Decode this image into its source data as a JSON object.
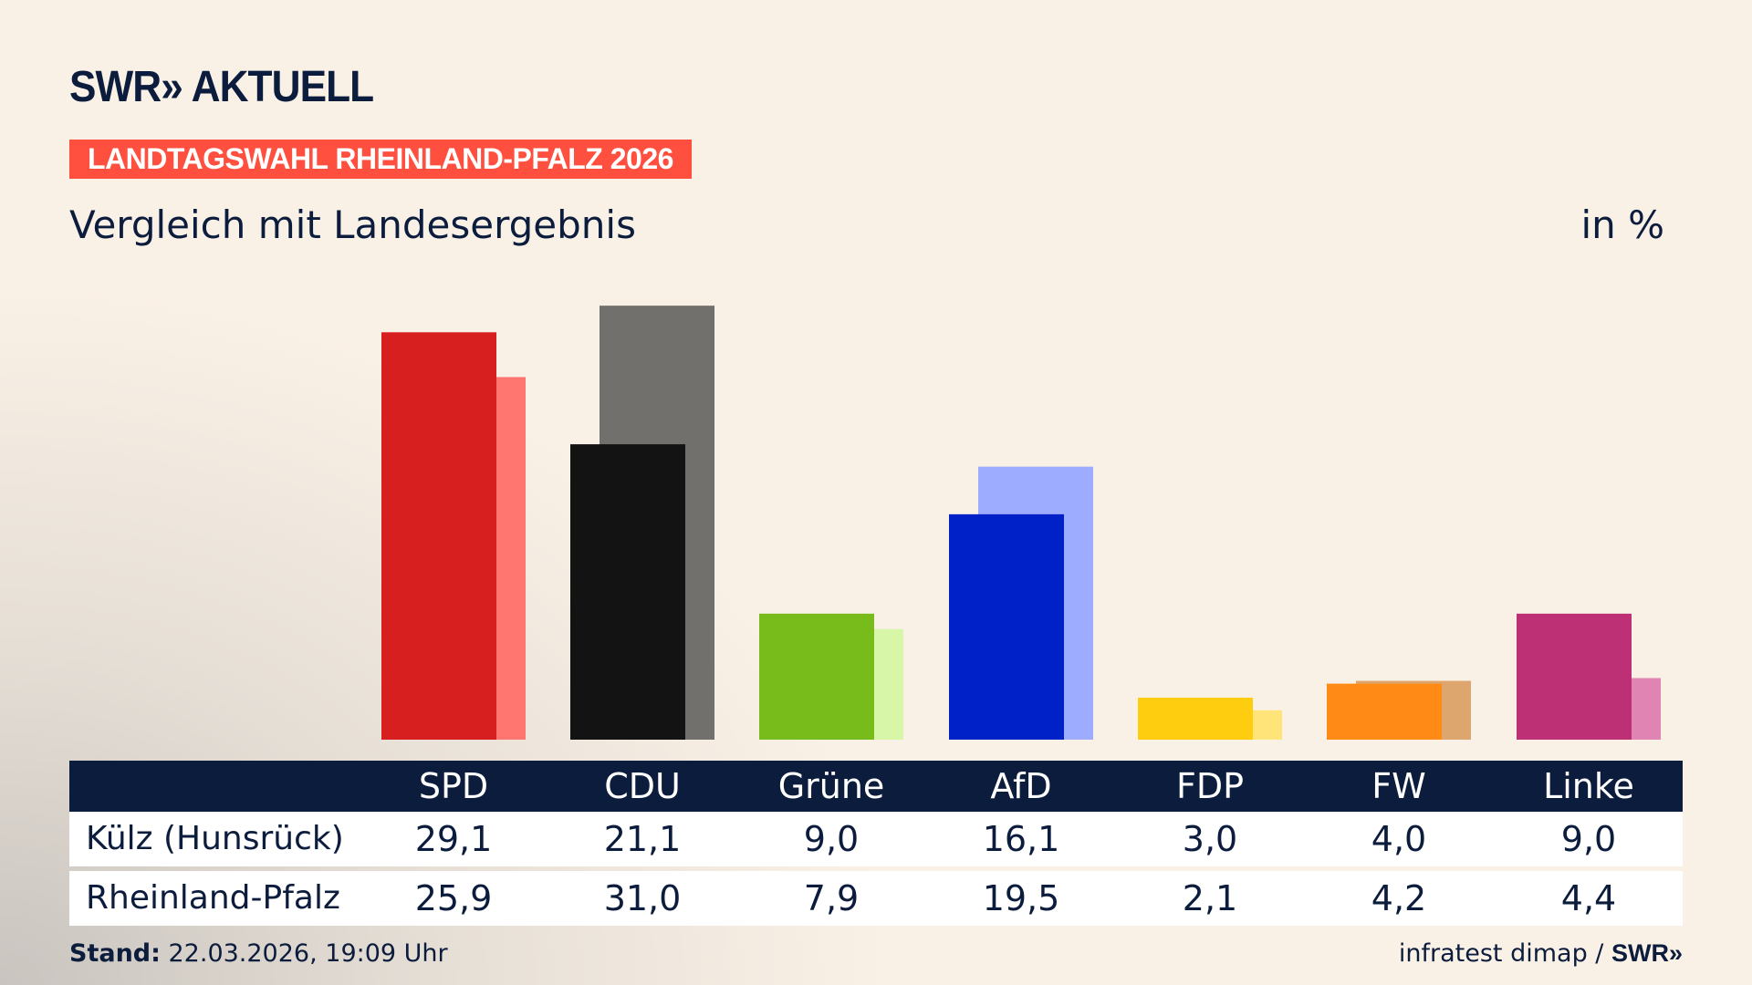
{
  "logo": "SWR» AKTUELL",
  "banner": "LANDTAGSWAHL RHEINLAND-PFALZ 2026",
  "subtitle": "Vergleich mit Landesergebnis",
  "unit": "in %",
  "chart_data": {
    "type": "bar",
    "categories": [
      "SPD",
      "CDU",
      "Grüne",
      "AfD",
      "FDP",
      "FW",
      "Linke"
    ],
    "series": [
      {
        "name": "Külz (Hunsrück)",
        "values": [
          29.1,
          21.1,
          9.0,
          16.1,
          3.0,
          4.0,
          9.0
        ],
        "colors": [
          "#d81f1f",
          "#131313",
          "#78bc1b",
          "#0021c8",
          "#ffcd0f",
          "#ff8b16",
          "#bd3075"
        ]
      },
      {
        "name": "Rheinland-Pfalz",
        "values": [
          25.9,
          31.0,
          7.9,
          19.5,
          2.1,
          4.2,
          4.4
        ],
        "colors": [
          "#ff7670",
          "#72706d",
          "#d8f6a8",
          "#9eacff",
          "#ffe47a",
          "#dda66f",
          "#e084b4"
        ]
      }
    ],
    "ylim": [
      0,
      31
    ],
    "grid": false
  },
  "table": {
    "rows": [
      {
        "label": "Külz (Hunsrück)",
        "values": [
          "29,1",
          "21,1",
          "9,0",
          "16,1",
          "3,0",
          "4,0",
          "9,0"
        ]
      },
      {
        "label": "Rheinland-Pfalz",
        "values": [
          "25,9",
          "31,0",
          "7,9",
          "19,5",
          "2,1",
          "4,2",
          "4,4"
        ]
      }
    ]
  },
  "footer": {
    "stand_label": "Stand:",
    "stand_value": " 22.03.2026, 19:09 Uhr",
    "source": "infratest dimap / ",
    "brand": "SWR»"
  },
  "colors": {
    "navy": "#0c1c3d",
    "banner": "#ff4f3f"
  }
}
